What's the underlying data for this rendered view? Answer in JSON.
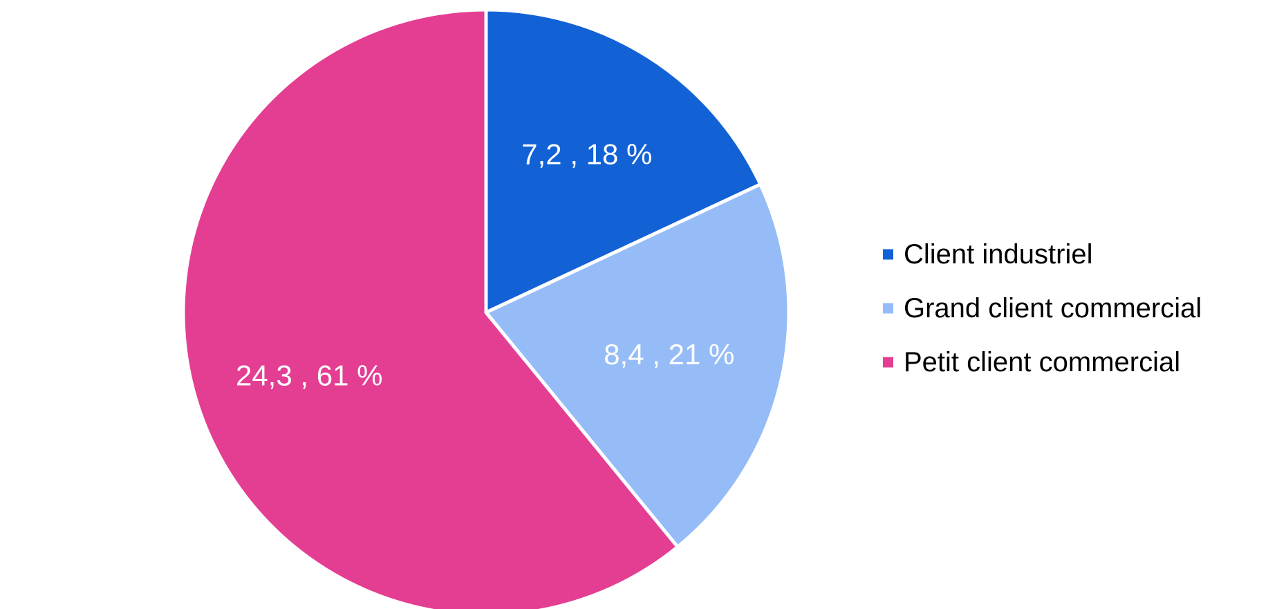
{
  "chart_data": {
    "type": "pie",
    "title": "",
    "start_angle_deg": 0,
    "direction": "clockwise",
    "legend_position": "right",
    "slices": [
      {
        "label": "Client industriel",
        "value": 7.2,
        "percent": 18,
        "data_label": "7,2 , 18 %",
        "color": "#1262D6"
      },
      {
        "label": "Grand client commercial",
        "value": 8.4,
        "percent": 21,
        "data_label": "8,4 , 21 %",
        "color": "#95BCF7"
      },
      {
        "label": "Petit client commercial",
        "value": 24.3,
        "percent": 61,
        "data_label": "24,3 , 61 %",
        "color": "#E43E93"
      }
    ],
    "separator_color": "#ffffff"
  }
}
